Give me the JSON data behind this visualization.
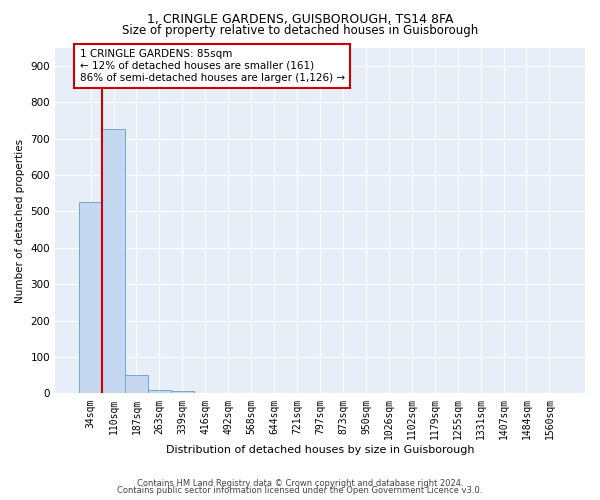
{
  "title_line1": "1, CRINGLE GARDENS, GUISBOROUGH, TS14 8FA",
  "title_line2": "Size of property relative to detached houses in Guisborough",
  "xlabel": "Distribution of detached houses by size in Guisborough",
  "ylabel": "Number of detached properties",
  "categories": [
    "34sqm",
    "110sqm",
    "187sqm",
    "263sqm",
    "339sqm",
    "416sqm",
    "492sqm",
    "568sqm",
    "644sqm",
    "721sqm",
    "797sqm",
    "873sqm",
    "950sqm",
    "1026sqm",
    "1102sqm",
    "1179sqm",
    "1255sqm",
    "1331sqm",
    "1407sqm",
    "1484sqm",
    "1560sqm"
  ],
  "values": [
    527,
    726,
    50,
    10,
    7,
    0,
    0,
    0,
    0,
    0,
    0,
    0,
    0,
    0,
    0,
    0,
    0,
    0,
    0,
    0,
    0
  ],
  "bar_color": "#c5d8f0",
  "bar_edge_color": "#6aaad4",
  "annotation_box_text": "1 CRINGLE GARDENS: 85sqm\n← 12% of detached houses are smaller (161)\n86% of semi-detached houses are larger (1,126) →",
  "annotation_box_color": "#cc0000",
  "annotation_box_fill": "#ffffff",
  "background_color": "#e8eef8",
  "grid_color": "#ffffff",
  "footer_line1": "Contains HM Land Registry data © Crown copyright and database right 2024.",
  "footer_line2": "Contains public sector information licensed under the Open Government Licence v3.0.",
  "ylim": [
    0,
    950
  ],
  "yticks": [
    0,
    100,
    200,
    300,
    400,
    500,
    600,
    700,
    800,
    900
  ],
  "red_line_x": 0.5,
  "title_fontsize": 9,
  "subtitle_fontsize": 8.5,
  "xlabel_fontsize": 8,
  "ylabel_fontsize": 7.5,
  "tick_fontsize": 7,
  "annot_fontsize": 7.5,
  "footer_fontsize": 6
}
